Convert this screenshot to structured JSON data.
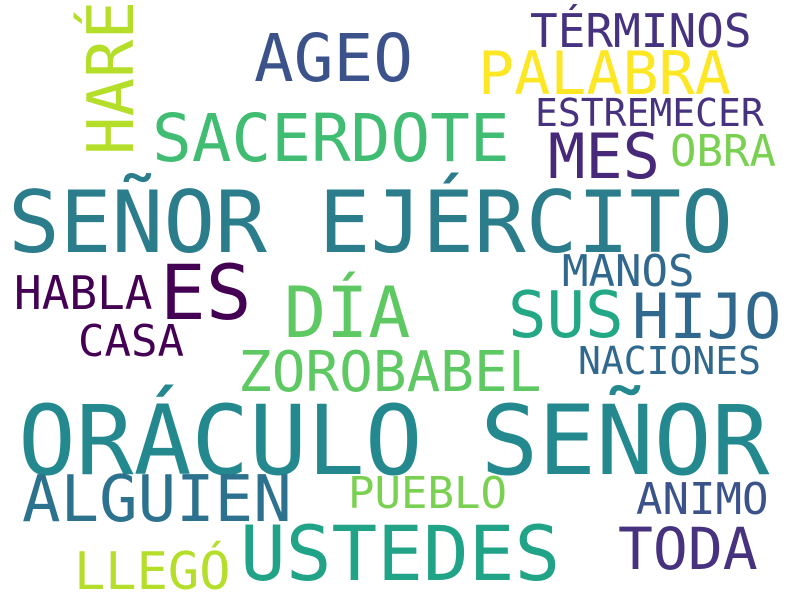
{
  "words": [
    {
      "text": "SEÑOR EJÉRCITO",
      "color": "#2b7d8b"
    },
    {
      "text": "ORÁCULO SEÑOR",
      "color": "#23898e"
    },
    {
      "text": "SACERDOTE",
      "color": "#40bd72"
    },
    {
      "text": "DÍA",
      "color": "#5ec962"
    },
    {
      "text": "ZOROBABEL",
      "color": "#5ec962"
    },
    {
      "text": "AGEO",
      "color": "#3b528b"
    },
    {
      "text": "PALABRA",
      "color": "#fde725"
    },
    {
      "text": "TÉRMINOS",
      "color": "#46327e"
    },
    {
      "text": "ESTREMECER",
      "color": "#46327e"
    },
    {
      "text": "MES",
      "color": "#482878"
    },
    {
      "text": "OBRA",
      "color": "#7ad151"
    },
    {
      "text": "HARÉ",
      "color": "#b5de2b"
    },
    {
      "text": "ES",
      "color": "#440154"
    },
    {
      "text": "HABLA",
      "color": "#440154"
    },
    {
      "text": "CASA",
      "color": "#440154"
    },
    {
      "text": "MANOS",
      "color": "#31688e"
    },
    {
      "text": "SUS",
      "color": "#22a884"
    },
    {
      "text": "HIJO",
      "color": "#31688e"
    },
    {
      "text": "NACIONES",
      "color": "#31688e"
    },
    {
      "text": "ALGUIEN",
      "color": "#2c728e"
    },
    {
      "text": "PUEBLO",
      "color": "#7ad151"
    },
    {
      "text": "ANIMO",
      "color": "#3b528b"
    },
    {
      "text": "USTEDES",
      "color": "#20a386"
    },
    {
      "text": "TODA",
      "color": "#46327e"
    },
    {
      "text": "LLEGÓ",
      "color": "#b5de2b"
    }
  ]
}
